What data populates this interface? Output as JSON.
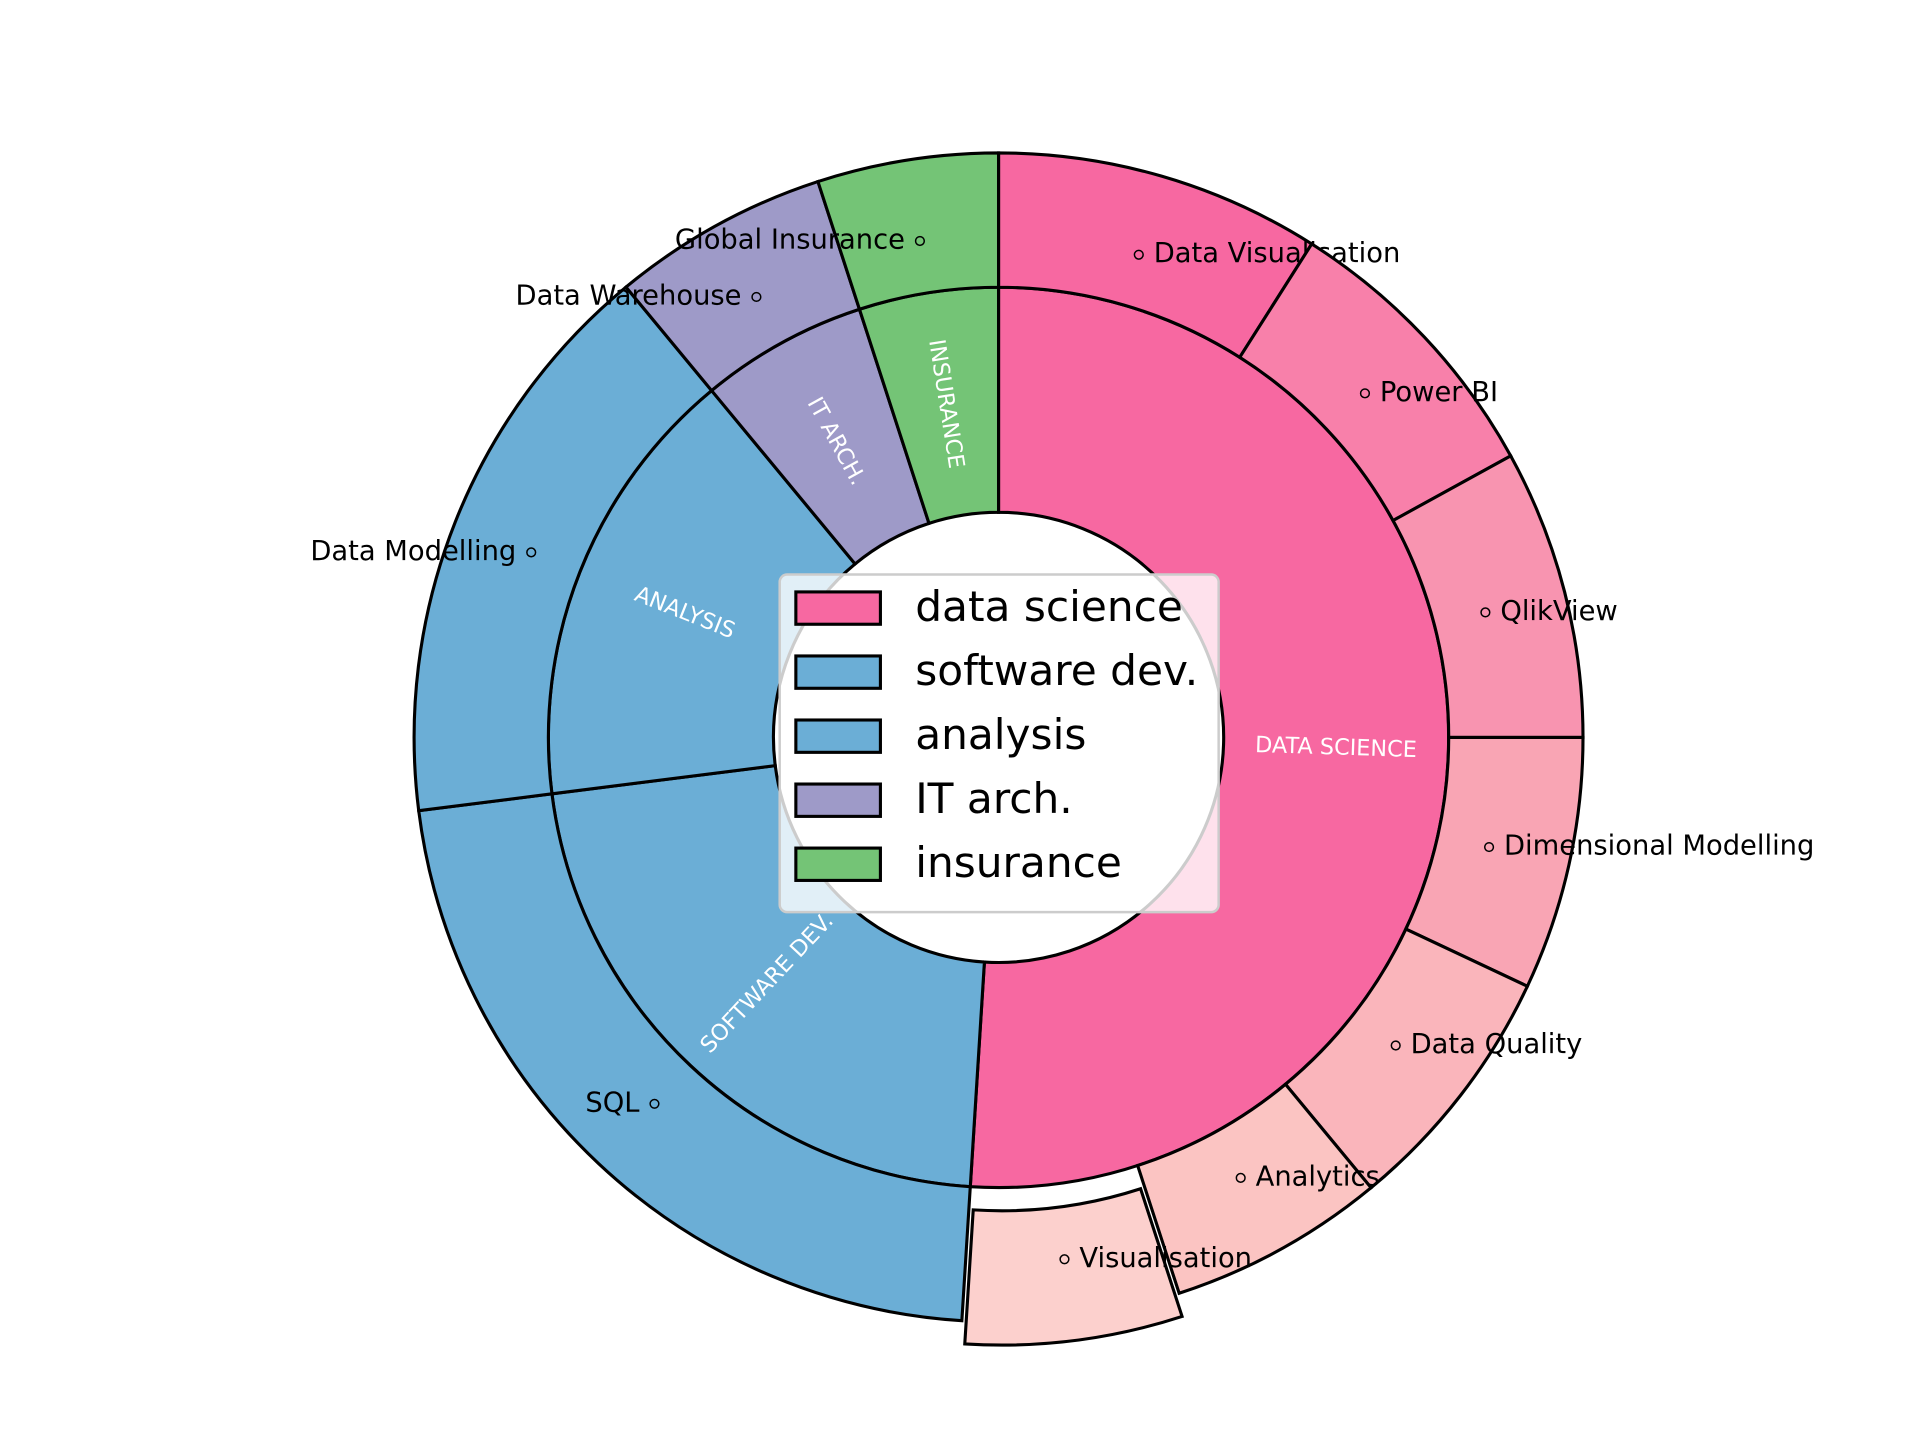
{
  "chart_data": {
    "type": "nested-donut",
    "start_angle": 90,
    "counterclock": false,
    "legend": "center",
    "inner": {
      "labels": [
        "DATA SCIENCE",
        "SOFTWARE DEV.",
        "ANALYSIS",
        "IT ARCH.",
        "INSURANCE"
      ],
      "legend_names": [
        "data science",
        "software dev.",
        "analysis",
        "IT arch.",
        "insurance"
      ],
      "values": [
        51,
        22,
        16,
        6,
        5
      ],
      "colors": [
        "#f768a1",
        "#6baed6",
        "#6baed6",
        "#9e9ac8",
        "#74c476"
      ]
    },
    "outer": {
      "labels": [
        "Data Visualisation",
        "Power BI",
        "QlikView",
        "Dimensional Modelling",
        "Data Quality",
        "Analytics",
        "Visualisation",
        "SQL",
        "Data Modelling",
        "Data Warehouse",
        "Global Insurance"
      ],
      "values": [
        9,
        8,
        8,
        7,
        7,
        6,
        6,
        22,
        16,
        6,
        5
      ],
      "colors": [
        "#f768a1",
        "#f880aa",
        "#f894b0",
        "#f9a5b4",
        "#fab5bb",
        "#fbc4c2",
        "#fcd0cd",
        "#6baed6",
        "#6baed6",
        "#9e9ac8",
        "#74c476"
      ],
      "explode": [
        0,
        0,
        0,
        0,
        0,
        0,
        0.04,
        0,
        0,
        0,
        0
      ]
    }
  }
}
